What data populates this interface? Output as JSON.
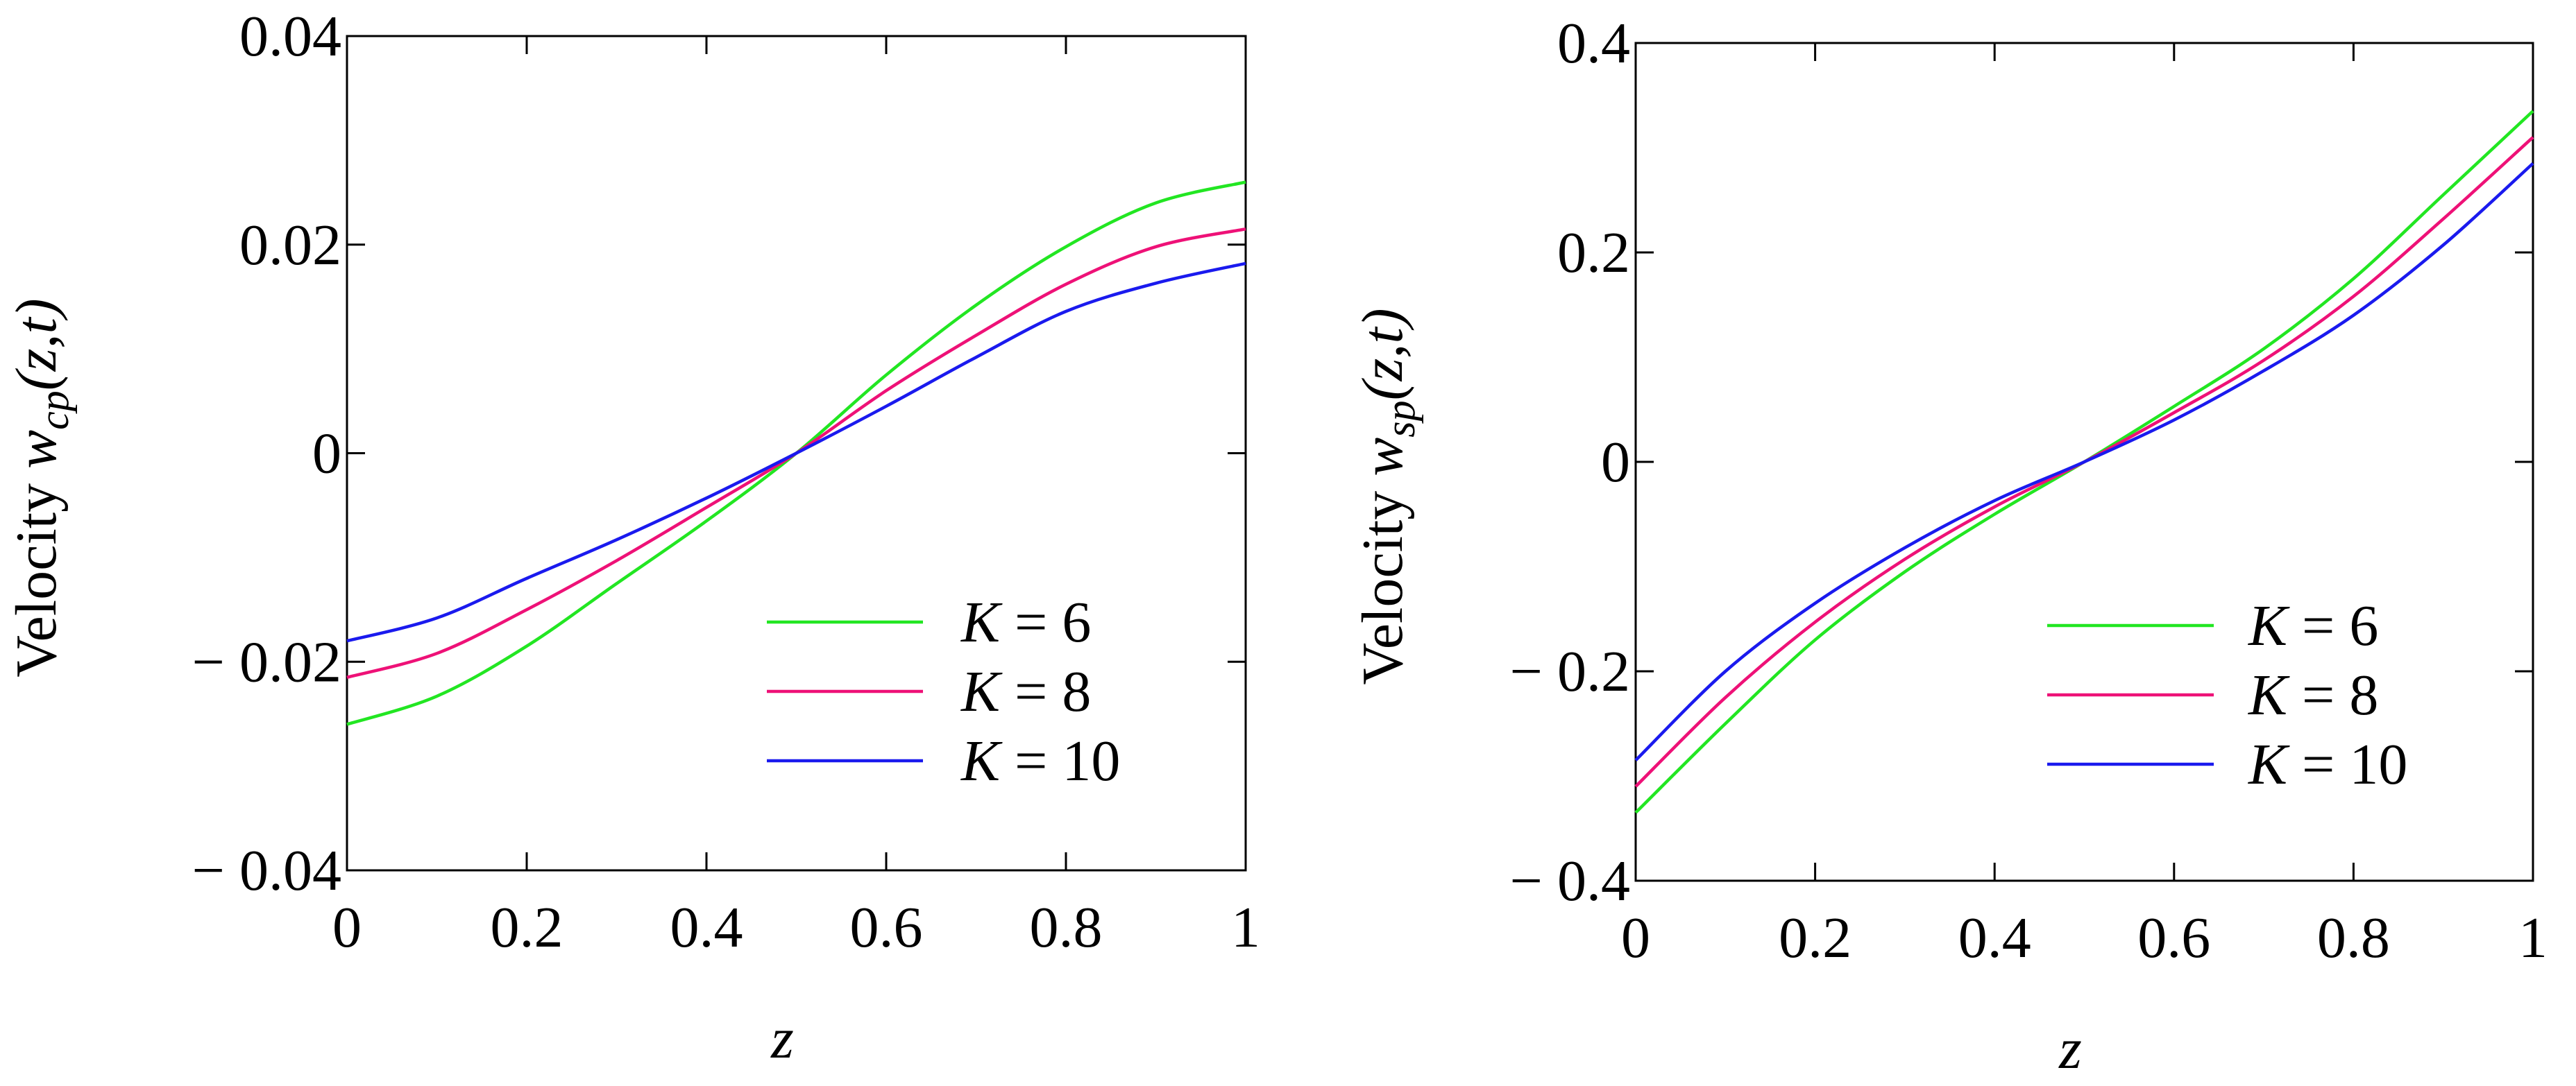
{
  "chart_data": [
    {
      "type": "line",
      "xlabel": "z",
      "ylabel_prefix": "Velocity",
      "ylabel_var": "w",
      "ylabel_sub": "cp",
      "ylabel_args": "(z,t)",
      "xlim": [
        0,
        1
      ],
      "ylim": [
        -0.04,
        0.04
      ],
      "x_ticks": [
        "0",
        "0.2",
        "0.4",
        "0.6",
        "0.8",
        "1"
      ],
      "y_ticks": [
        "0.04",
        "0.02",
        "0",
        "− 0.02",
        "− 0.04"
      ],
      "legend_position": "bottom-right",
      "x": [
        0,
        0.1,
        0.2,
        0.3,
        0.4,
        0.5,
        0.6,
        0.7,
        0.8,
        0.9,
        1.0
      ],
      "series": [
        {
          "name": "K = 6",
          "label_var": "K",
          "label_rest": " = 6",
          "color": "#22e622",
          "values": [
            -0.026,
            -0.0233,
            -0.0185,
            -0.0125,
            -0.0065,
            0,
            0.0075,
            0.0142,
            0.0198,
            0.024,
            0.026
          ]
        },
        {
          "name": "K = 8",
          "label_var": "K",
          "label_rest": " = 8",
          "color": "#ee1177",
          "values": [
            -0.0215,
            -0.0192,
            -0.015,
            -0.0103,
            -0.0052,
            0,
            0.006,
            0.0113,
            0.0162,
            0.0198,
            0.0215
          ]
        },
        {
          "name": "K = 10",
          "label_var": "K",
          "label_rest": " = 10",
          "color": "#1a1aee",
          "values": [
            -0.018,
            -0.0158,
            -0.012,
            -0.0083,
            -0.0043,
            0,
            0.0045,
            0.0092,
            0.0136,
            0.0163,
            0.0182
          ]
        }
      ]
    },
    {
      "type": "line",
      "xlabel": "z",
      "ylabel_prefix": "Velocity",
      "ylabel_var": "w",
      "ylabel_sub": "sp",
      "ylabel_args": "(z,t)",
      "xlim": [
        0,
        1
      ],
      "ylim": [
        -0.4,
        0.4
      ],
      "x_ticks": [
        "0",
        "0.2",
        "0.4",
        "0.6",
        "0.8",
        "1"
      ],
      "y_ticks": [
        "0.4",
        "0.2",
        "0",
        "− 0.2",
        "− 0.4"
      ],
      "legend_position": "bottom-right",
      "x": [
        0,
        0.1,
        0.2,
        0.3,
        0.4,
        0.5,
        0.6,
        0.7,
        0.8,
        0.9,
        1.0
      ],
      "series": [
        {
          "name": "K = 6",
          "label_var": "K",
          "label_rest": " = 6",
          "color": "#22e622",
          "values": [
            -0.335,
            -0.25,
            -0.17,
            -0.105,
            -0.05,
            0,
            0.053,
            0.108,
            0.175,
            0.255,
            0.335
          ]
        },
        {
          "name": "K = 8",
          "label_var": "K",
          "label_rest": " = 8",
          "color": "#ee1177",
          "values": [
            -0.31,
            -0.225,
            -0.153,
            -0.093,
            -0.043,
            0,
            0.047,
            0.097,
            0.158,
            0.232,
            0.31
          ]
        },
        {
          "name": "K = 10",
          "label_var": "K",
          "label_rest": " = 10",
          "color": "#1a1aee",
          "values": [
            -0.285,
            -0.2,
            -0.135,
            -0.082,
            -0.037,
            0,
            0.04,
            0.087,
            0.14,
            0.207,
            0.285
          ]
        }
      ]
    }
  ]
}
